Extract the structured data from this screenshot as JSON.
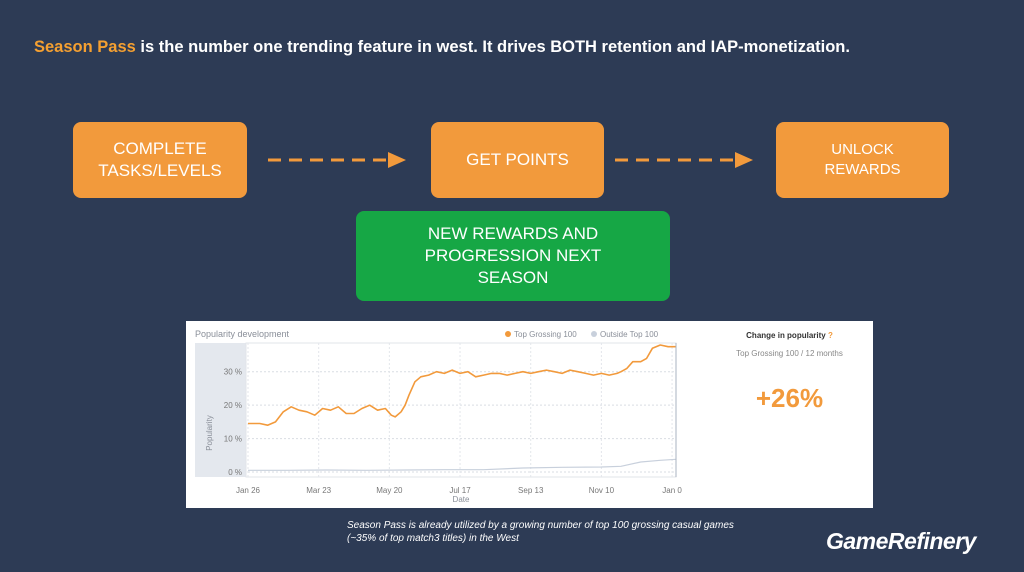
{
  "headline": {
    "highlight": "Season Pass",
    "rest": " is the number one trending feature in west. It drives BOTH retention and IAP-monetization."
  },
  "flow": {
    "step1": "COMPLETE TASKS/LEVELS",
    "step2": "GET POINTS",
    "step3": "UNLOCK REWARDS",
    "loop": "NEW REWARDS AND PROGRESSION NEXT SEASON"
  },
  "colors": {
    "background": "#2d3b55",
    "accent_orange": "#f29a3c",
    "green": "#16a745",
    "outside_series": "#c8d0dc"
  },
  "chart_data": {
    "type": "line",
    "title": "Popularity development",
    "xlabel": "Date",
    "ylabel": "Popularity",
    "ylim": [
      0,
      38
    ],
    "yticks": [
      "0 %",
      "10 %",
      "20 %",
      "30 %"
    ],
    "yticks_values": [
      0,
      10,
      20,
      30
    ],
    "xticks": [
      "Jan 26",
      "Mar 23",
      "May 20",
      "Jul 17",
      "Sep 13",
      "Nov 10",
      "Jan 0"
    ],
    "legend_position": "top-right",
    "grid": true,
    "series": [
      {
        "name": "Top Grossing 100",
        "color": "#f29a3c",
        "points": [
          [
            0,
            14.5
          ],
          [
            6,
            14.5
          ],
          [
            10,
            14
          ],
          [
            14,
            15
          ],
          [
            18,
            18
          ],
          [
            22,
            19.5
          ],
          [
            26,
            18.5
          ],
          [
            30,
            18
          ],
          [
            34,
            17
          ],
          [
            38,
            19
          ],
          [
            42,
            18.5
          ],
          [
            46,
            19.5
          ],
          [
            50,
            17.5
          ],
          [
            54,
            17.5
          ],
          [
            58,
            19
          ],
          [
            62,
            20
          ],
          [
            66,
            18.5
          ],
          [
            70,
            19
          ],
          [
            73,
            17
          ],
          [
            75,
            16.5
          ],
          [
            78,
            18
          ],
          [
            80,
            20
          ],
          [
            82,
            23
          ],
          [
            85,
            27
          ],
          [
            88,
            28.5
          ],
          [
            92,
            29
          ],
          [
            96,
            30
          ],
          [
            100,
            29.5
          ],
          [
            104,
            30.5
          ],
          [
            108,
            29.5
          ],
          [
            112,
            30
          ],
          [
            116,
            28.5
          ],
          [
            120,
            29
          ],
          [
            124,
            29.5
          ],
          [
            128,
            29.5
          ],
          [
            132,
            29
          ],
          [
            136,
            29.5
          ],
          [
            140,
            30
          ],
          [
            144,
            29.5
          ],
          [
            148,
            30
          ],
          [
            152,
            30.5
          ],
          [
            156,
            30
          ],
          [
            160,
            29.5
          ],
          [
            164,
            30.5
          ],
          [
            168,
            30
          ],
          [
            172,
            29.5
          ],
          [
            176,
            29
          ],
          [
            180,
            29.5
          ],
          [
            184,
            29
          ],
          [
            188,
            29.5
          ],
          [
            190,
            30
          ],
          [
            193,
            31
          ],
          [
            196,
            33
          ],
          [
            200,
            33
          ],
          [
            203,
            34
          ],
          [
            206,
            37
          ],
          [
            210,
            38
          ],
          [
            214,
            37.5
          ],
          [
            218,
            37.5
          ]
        ]
      },
      {
        "name": "Outside Top 100",
        "color": "#c8d0dc",
        "points": [
          [
            0,
            0.5
          ],
          [
            20,
            0.5
          ],
          [
            40,
            0.6
          ],
          [
            60,
            0.5
          ],
          [
            80,
            0.6
          ],
          [
            100,
            0.7
          ],
          [
            120,
            0.7
          ],
          [
            140,
            1.2
          ],
          [
            160,
            1.4
          ],
          [
            180,
            1.5
          ],
          [
            190,
            1.7
          ],
          [
            200,
            3
          ],
          [
            210,
            3.5
          ],
          [
            218,
            3.8
          ]
        ]
      }
    ]
  },
  "stats": {
    "title": "Change in popularity",
    "title_mark": "?",
    "subtitle": "Top Grossing 100 / 12 months",
    "value": "+26%"
  },
  "caption": "Season Pass is already utilized by a growing number of top 100 grossing casual games (~35% of top match3 titles) in the West",
  "logo": "GameRefinery"
}
